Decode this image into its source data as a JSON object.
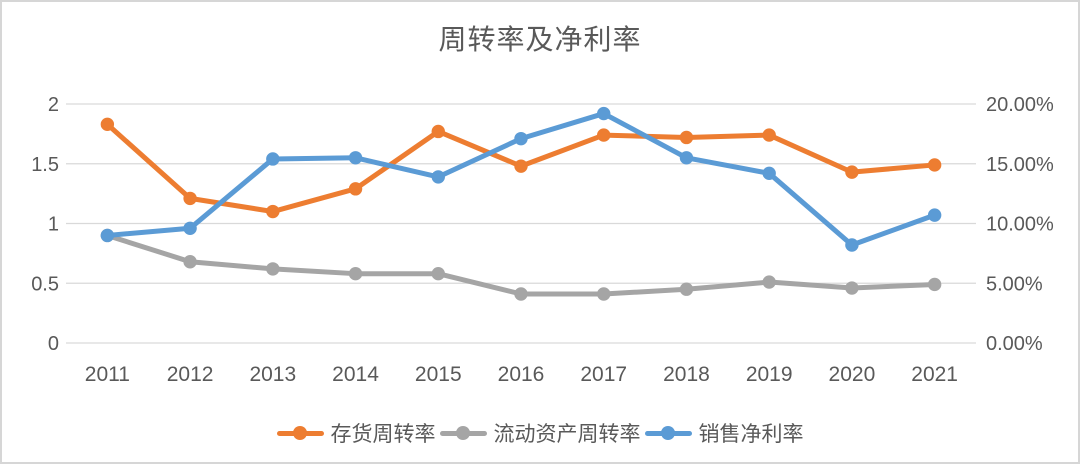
{
  "chart_data": {
    "type": "line",
    "title": "周转率及净利率",
    "categories": [
      "2011",
      "2012",
      "2013",
      "2014",
      "2015",
      "2016",
      "2017",
      "2018",
      "2019",
      "2020",
      "2021"
    ],
    "series": [
      {
        "id": "inventory-turnover",
        "name": "存货周转率",
        "color": "#ED7D31",
        "axis": "left",
        "values": [
          1.83,
          1.21,
          1.1,
          1.29,
          1.77,
          1.48,
          1.74,
          1.72,
          1.74,
          1.43,
          1.49
        ]
      },
      {
        "id": "current-assets-turnover",
        "name": "流动资产周转率",
        "color": "#A5A5A5",
        "axis": "left",
        "values": [
          0.9,
          0.68,
          0.62,
          0.58,
          0.58,
          0.41,
          0.41,
          0.45,
          0.51,
          0.46,
          0.49
        ]
      },
      {
        "id": "net-profit-margin",
        "name": "销售净利率",
        "color": "#5B9BD5",
        "axis": "right",
        "values": [
          9.0,
          9.6,
          15.4,
          15.5,
          13.9,
          17.1,
          19.2,
          15.5,
          14.2,
          8.2,
          10.7
        ]
      }
    ],
    "left_axis": {
      "min": 0,
      "max": 2,
      "tick_values": [
        2,
        1.5,
        1,
        0.5,
        0
      ],
      "tick_labels": [
        "2",
        "1.5",
        "1",
        "0.5",
        "0"
      ]
    },
    "right_axis": {
      "min": 0,
      "max": 20,
      "tick_values": [
        20,
        15,
        10,
        5,
        0
      ],
      "tick_labels": [
        "20.00%",
        "15.00%",
        "10.00%",
        "5.00%",
        "0.00%"
      ]
    },
    "grid": true,
    "legend_position": "bottom"
  },
  "styles": {
    "text_color": "#595959",
    "gridline_color": "#D9D9D9",
    "background": "#FFFFFF",
    "border_color": "#D6D6D6"
  }
}
